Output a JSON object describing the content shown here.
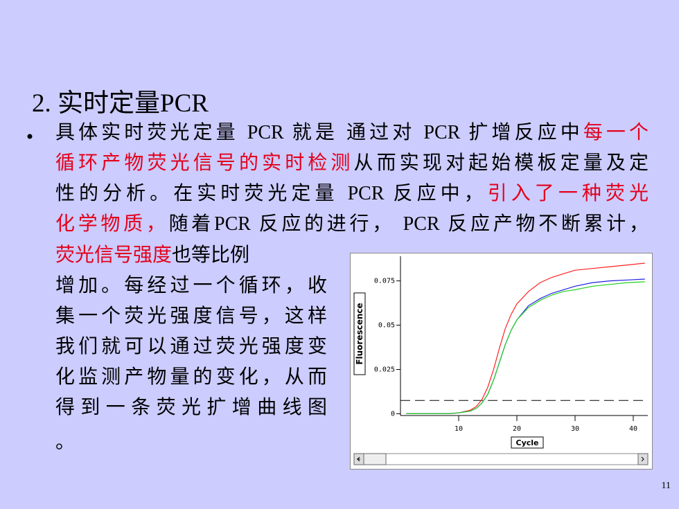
{
  "title": "2. 实时定量PCR",
  "lines": [
    [
      {
        "text": "具体实时荧光定量 PCR 就是 通过对 PCR 扩增反应中",
        "emphasis": false
      },
      {
        "text": "每一个",
        "emphasis": true
      }
    ],
    [
      {
        "text": "循环产物荧光信号的实时检测",
        "emphasis": true
      },
      {
        "text": "从而实现对起始模板定量及定",
        "emphasis": false
      }
    ],
    [
      {
        "text": "性的分析。在实时荧光定量 PCR 反应中，",
        "emphasis": false
      },
      {
        "text": "引入了一种荧光",
        "emphasis": true
      }
    ],
    [
      {
        "text": "化学物质，",
        "emphasis": true
      },
      {
        "text": "随着PCR 反应的进行， PCR 反应产物不断累计，",
        "emphasis": false
      }
    ],
    [
      {
        "text": "荧光信号强度",
        "emphasis": true
      },
      {
        "text": "也等比例",
        "emphasis": false
      }
    ],
    [
      {
        "text": "增加。每经过一个循环，收",
        "emphasis": false
      }
    ],
    [
      {
        "text": "集一个荧光强度信号，这样",
        "emphasis": false
      }
    ],
    [
      {
        "text": "我们就可以通过荧光强度变",
        "emphasis": false
      }
    ],
    [
      {
        "text": "化监测产物量的变化，从而",
        "emphasis": false
      }
    ],
    [
      {
        "text": "得到一条荧光扩增曲线图",
        "emphasis": false
      }
    ],
    [
      {
        "text": "。",
        "emphasis": false
      }
    ]
  ],
  "page_number": "11",
  "chart_data": {
    "type": "line",
    "x_label": "Cycle",
    "y_label": "Fluorescence",
    "x": [
      1,
      4,
      8,
      10,
      12,
      13,
      14,
      15,
      16,
      17,
      18,
      19,
      20,
      22,
      24,
      26,
      28,
      30,
      33,
      36,
      39,
      42
    ],
    "series": [
      {
        "color": "#ff2020",
        "values": [
          0,
          0,
          0,
          0.0005,
          0.002,
          0.004,
          0.008,
          0.015,
          0.025,
          0.037,
          0.048,
          0.056,
          0.062,
          0.069,
          0.074,
          0.077,
          0.079,
          0.081,
          0.082,
          0.083,
          0.084,
          0.085
        ]
      },
      {
        "color": "#2020e0",
        "values": [
          0,
          0,
          0,
          0.0005,
          0.0015,
          0.003,
          0.006,
          0.011,
          0.019,
          0.029,
          0.039,
          0.047,
          0.053,
          0.061,
          0.065,
          0.068,
          0.07,
          0.072,
          0.074,
          0.075,
          0.0755,
          0.076
        ]
      },
      {
        "color": "#20d020",
        "values": [
          0,
          0,
          0,
          0.0005,
          0.0015,
          0.003,
          0.006,
          0.011,
          0.019,
          0.029,
          0.039,
          0.047,
          0.053,
          0.06,
          0.064,
          0.067,
          0.069,
          0.07,
          0.072,
          0.073,
          0.074,
          0.0745
        ]
      }
    ],
    "threshold": 0.0075,
    "xlim": [
      0,
      42.5
    ],
    "xticks": [
      10,
      20,
      30,
      40
    ],
    "ylim": [
      -0.001,
      0.085
    ],
    "yticks": [
      0,
      0.025,
      0.05,
      0.075
    ]
  }
}
